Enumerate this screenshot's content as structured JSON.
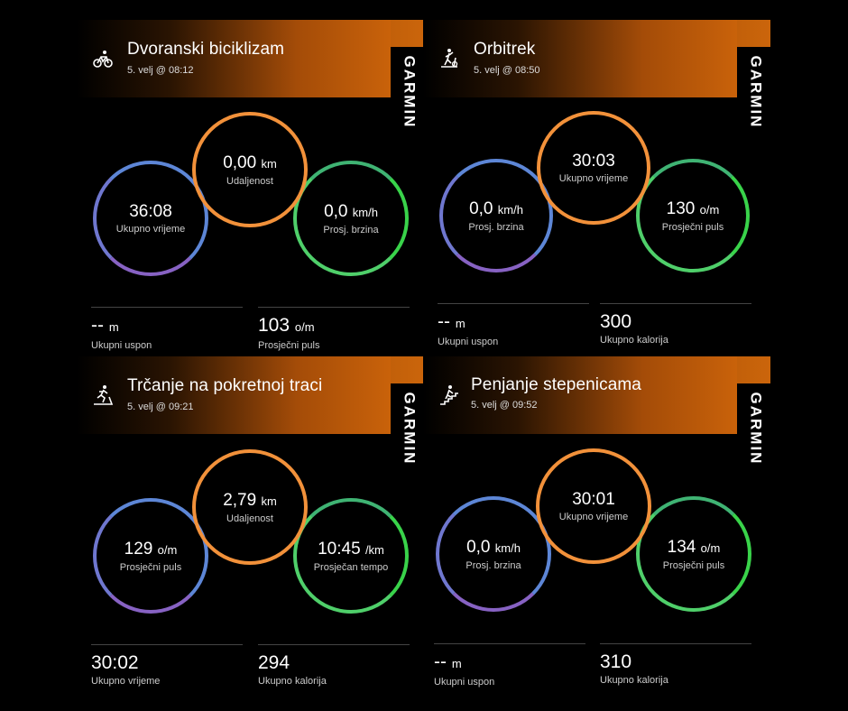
{
  "panels": [
    {
      "title": "Dvoranski biciklizam",
      "date": "5. velj @ 08:12",
      "icon": "indoor-cycling-icon",
      "brand": "GARMIN",
      "circles": {
        "center": {
          "value": "0,00",
          "unit": "km",
          "label": "Udaljenost"
        },
        "left": {
          "value": "36:08",
          "unit": "",
          "label": "Ukupno vrijeme"
        },
        "right": {
          "value": "0,0",
          "unit": "km/h",
          "label": "Prosj. brzina"
        }
      },
      "stats": [
        {
          "value": "--",
          "unit": "m",
          "label": "Ukupni uspon"
        },
        {
          "value": "103",
          "unit": "o/m",
          "label": "Prosječni puls"
        }
      ]
    },
    {
      "title": "Orbitrek",
      "date": "5. velj @ 08:50",
      "icon": "elliptical-icon",
      "brand": "GARMIN",
      "circles": {
        "center": {
          "value": "30:03",
          "unit": "",
          "label": "Ukupno vrijeme"
        },
        "left": {
          "value": "0,0",
          "unit": "km/h",
          "label": "Prosj. brzina"
        },
        "right": {
          "value": "130",
          "unit": "o/m",
          "label": "Prosječni puls"
        }
      },
      "stats": [
        {
          "value": "--",
          "unit": "m",
          "label": "Ukupni uspon"
        },
        {
          "value": "300",
          "unit": "",
          "label": "Ukupno kalorija"
        }
      ]
    },
    {
      "title": "Trčanje na pokretnoj traci",
      "date": "5. velj @ 09:21",
      "icon": "treadmill-icon",
      "brand": "GARMIN",
      "circles": {
        "center": {
          "value": "2,79",
          "unit": "km",
          "label": "Udaljenost"
        },
        "left": {
          "value": "129",
          "unit": "o/m",
          "label": "Prosječni puls"
        },
        "right": {
          "value": "10:45",
          "unit": "/km",
          "label": "Prosječan tempo"
        }
      },
      "stats": [
        {
          "value": "30:02",
          "unit": "",
          "label": "Ukupno vrijeme"
        },
        {
          "value": "294",
          "unit": "",
          "label": "Ukupno kalorija"
        }
      ]
    },
    {
      "title": "Penjanje stepenicama",
      "date": "5. velj @ 09:52",
      "icon": "stair-climbing-icon",
      "brand": "GARMIN",
      "circles": {
        "center": {
          "value": "30:01",
          "unit": "",
          "label": "Ukupno vrijeme"
        },
        "left": {
          "value": "0,0",
          "unit": "km/h",
          "label": "Prosj. brzina"
        },
        "right": {
          "value": "134",
          "unit": "o/m",
          "label": "Prosječni puls"
        }
      },
      "stats": [
        {
          "value": "--",
          "unit": "m",
          "label": "Ukupni uspon"
        },
        {
          "value": "310",
          "unit": "",
          "label": "Ukupno kalorija"
        }
      ]
    }
  ],
  "colors": {
    "background": "#000000",
    "header_accent": "#c9620a",
    "ring_center": "#f2913a",
    "ring_left": "#6f77cf",
    "ring_right": "#4fcf6a"
  }
}
